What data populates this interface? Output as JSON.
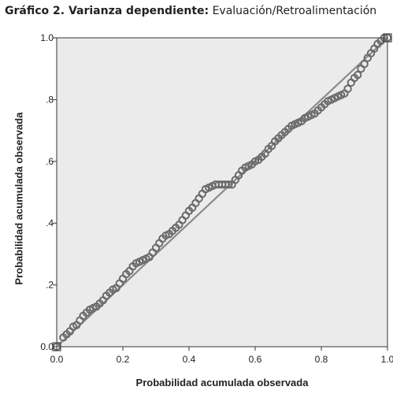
{
  "caption": {
    "bold": "Gráfico 2. Varianza dependiente:",
    "normal": "Evaluación/Retroalimentación"
  },
  "chart_data": {
    "type": "scatter",
    "title": "",
    "xlabel": "Probabilidad acumulada observada",
    "ylabel": "Probabilidad acumulada observada",
    "xlim": [
      0,
      1
    ],
    "ylim": [
      0,
      1
    ],
    "x_ticks": [
      "0.0",
      "0.2",
      "0.4",
      "0.6",
      "0.8",
      "1.0"
    ],
    "y_ticks": [
      "0.0",
      ".2",
      ".4",
      ".6",
      ".8",
      "1.0"
    ],
    "reference_line": {
      "from": [
        0,
        0
      ],
      "to": [
        1,
        1
      ]
    },
    "colors": {
      "plot_background": "#ebebeb",
      "points": "#6a6a6a",
      "line": "#8a8a8a"
    },
    "points": [
      [
        0.0,
        0.0
      ],
      [
        0.02,
        0.03
      ],
      [
        0.03,
        0.04
      ],
      [
        0.04,
        0.05
      ],
      [
        0.05,
        0.065
      ],
      [
        0.06,
        0.07
      ],
      [
        0.07,
        0.085
      ],
      [
        0.08,
        0.1
      ],
      [
        0.09,
        0.11
      ],
      [
        0.1,
        0.12
      ],
      [
        0.11,
        0.125
      ],
      [
        0.12,
        0.13
      ],
      [
        0.13,
        0.14
      ],
      [
        0.14,
        0.15
      ],
      [
        0.15,
        0.165
      ],
      [
        0.16,
        0.175
      ],
      [
        0.17,
        0.185
      ],
      [
        0.18,
        0.19
      ],
      [
        0.19,
        0.205
      ],
      [
        0.2,
        0.22
      ],
      [
        0.21,
        0.235
      ],
      [
        0.22,
        0.245
      ],
      [
        0.23,
        0.26
      ],
      [
        0.24,
        0.27
      ],
      [
        0.25,
        0.275
      ],
      [
        0.26,
        0.28
      ],
      [
        0.27,
        0.285
      ],
      [
        0.28,
        0.29
      ],
      [
        0.29,
        0.305
      ],
      [
        0.3,
        0.32
      ],
      [
        0.31,
        0.335
      ],
      [
        0.32,
        0.35
      ],
      [
        0.33,
        0.36
      ],
      [
        0.34,
        0.365
      ],
      [
        0.35,
        0.375
      ],
      [
        0.36,
        0.385
      ],
      [
        0.37,
        0.395
      ],
      [
        0.38,
        0.41
      ],
      [
        0.39,
        0.425
      ],
      [
        0.4,
        0.44
      ],
      [
        0.41,
        0.45
      ],
      [
        0.42,
        0.465
      ],
      [
        0.43,
        0.48
      ],
      [
        0.44,
        0.495
      ],
      [
        0.45,
        0.51
      ],
      [
        0.46,
        0.515
      ],
      [
        0.47,
        0.52
      ],
      [
        0.48,
        0.525
      ],
      [
        0.49,
        0.525
      ],
      [
        0.5,
        0.525
      ],
      [
        0.51,
        0.525
      ],
      [
        0.52,
        0.525
      ],
      [
        0.53,
        0.525
      ],
      [
        0.54,
        0.54
      ],
      [
        0.55,
        0.555
      ],
      [
        0.56,
        0.57
      ],
      [
        0.57,
        0.58
      ],
      [
        0.58,
        0.585
      ],
      [
        0.59,
        0.59
      ],
      [
        0.6,
        0.6
      ],
      [
        0.61,
        0.605
      ],
      [
        0.62,
        0.615
      ],
      [
        0.63,
        0.625
      ],
      [
        0.64,
        0.64
      ],
      [
        0.65,
        0.65
      ],
      [
        0.66,
        0.665
      ],
      [
        0.67,
        0.675
      ],
      [
        0.68,
        0.685
      ],
      [
        0.69,
        0.695
      ],
      [
        0.7,
        0.705
      ],
      [
        0.71,
        0.715
      ],
      [
        0.72,
        0.72
      ],
      [
        0.73,
        0.725
      ],
      [
        0.74,
        0.73
      ],
      [
        0.75,
        0.74
      ],
      [
        0.76,
        0.745
      ],
      [
        0.77,
        0.75
      ],
      [
        0.78,
        0.755
      ],
      [
        0.79,
        0.765
      ],
      [
        0.8,
        0.775
      ],
      [
        0.81,
        0.785
      ],
      [
        0.82,
        0.795
      ],
      [
        0.83,
        0.8
      ],
      [
        0.84,
        0.805
      ],
      [
        0.85,
        0.81
      ],
      [
        0.86,
        0.815
      ],
      [
        0.87,
        0.82
      ],
      [
        0.88,
        0.835
      ],
      [
        0.89,
        0.855
      ],
      [
        0.9,
        0.87
      ],
      [
        0.91,
        0.88
      ],
      [
        0.92,
        0.9
      ],
      [
        0.93,
        0.915
      ],
      [
        0.94,
        0.935
      ],
      [
        0.95,
        0.95
      ],
      [
        0.96,
        0.965
      ],
      [
        0.97,
        0.98
      ],
      [
        0.98,
        0.99
      ],
      [
        0.99,
        1.0
      ],
      [
        1.0,
        1.0
      ]
    ]
  }
}
